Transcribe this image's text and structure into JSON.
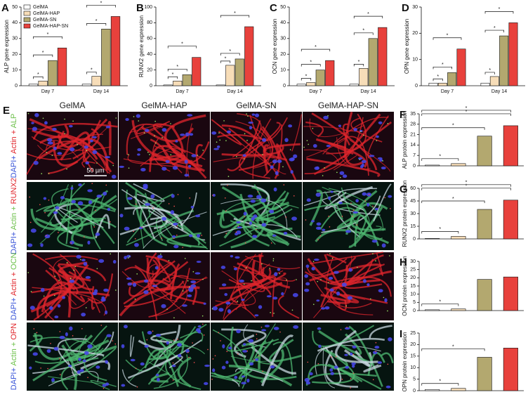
{
  "chart_data": [
    {
      "type": "grouped_bar",
      "panel": "A",
      "ylabel": "ALP gene expression",
      "categories": [
        "Day 7",
        "Day 14"
      ],
      "series": [
        {
          "name": "GelMA",
          "color": "#ffffff",
          "values": [
            1,
            1
          ]
        },
        {
          "name": "GelMA-HAP",
          "color": "#f7ddb8",
          "values": [
            3,
            6
          ]
        },
        {
          "name": "GelMA-SN",
          "color": "#b3a86f",
          "values": [
            16,
            36
          ]
        },
        {
          "name": "GelMA-HAP-SN",
          "color": "#e8413c",
          "values": [
            24,
            44
          ]
        }
      ],
      "ylim": [
        0,
        50
      ],
      "yticks": [
        0,
        10,
        20,
        30,
        40,
        50
      ],
      "legend": "upper left",
      "annotations": [
        "*",
        "*",
        "*",
        "*",
        "*",
        "*"
      ]
    },
    {
      "type": "grouped_bar",
      "panel": "B",
      "ylabel": "RUNX2 gene expression",
      "categories": [
        "Day 7",
        "Day 14"
      ],
      "series": [
        {
          "name": "GelMA",
          "color": "#ffffff",
          "values": [
            1,
            1
          ]
        },
        {
          "name": "GelMA-HAP",
          "color": "#f7ddb8",
          "values": [
            6,
            26
          ]
        },
        {
          "name": "GelMA-SN",
          "color": "#b3a86f",
          "values": [
            14,
            34
          ]
        },
        {
          "name": "GelMA-HAP-SN",
          "color": "#e8413c",
          "values": [
            36,
            75
          ]
        }
      ],
      "ylim": [
        0,
        100
      ],
      "yticks": [
        0,
        20,
        40,
        60,
        80,
        100
      ],
      "annotations": [
        "*",
        "*",
        "*",
        "*",
        "*",
        "*"
      ]
    },
    {
      "type": "grouped_bar",
      "panel": "C",
      "ylabel": "OCN gene expression",
      "categories": [
        "Day 7",
        "Day 14"
      ],
      "series": [
        {
          "name": "GelMA",
          "color": "#ffffff",
          "values": [
            1,
            1
          ]
        },
        {
          "name": "GelMA-HAP",
          "color": "#f7ddb8",
          "values": [
            2,
            11
          ]
        },
        {
          "name": "GelMA-SN",
          "color": "#b3a86f",
          "values": [
            10,
            30
          ]
        },
        {
          "name": "GelMA-HAP-SN",
          "color": "#e8413c",
          "values": [
            16,
            37
          ]
        }
      ],
      "ylim": [
        0,
        50
      ],
      "yticks": [
        0,
        10,
        20,
        30,
        40,
        50
      ],
      "annotations": [
        "*",
        "*",
        "*",
        "*",
        "*",
        "*"
      ]
    },
    {
      "type": "grouped_bar",
      "panel": "D",
      "ylabel": "OPN gene expression",
      "categories": [
        "Day 7",
        "Day 14"
      ],
      "series": [
        {
          "name": "GelMA",
          "color": "#ffffff",
          "values": [
            1,
            1
          ]
        },
        {
          "name": "GelMA-HAP",
          "color": "#f7ddb8",
          "values": [
            1,
            3.5
          ]
        },
        {
          "name": "GelMA-SN",
          "color": "#b3a86f",
          "values": [
            5,
            19
          ]
        },
        {
          "name": "GelMA-HAP-SN",
          "color": "#e8413c",
          "values": [
            14,
            24
          ]
        }
      ],
      "ylim": [
        0,
        30
      ],
      "yticks": [
        0,
        10,
        20,
        30
      ],
      "annotations": [
        "*",
        "*",
        "*",
        "*",
        "*",
        "*"
      ]
    },
    {
      "type": "bar",
      "panel": "F",
      "ylabel": "ALP protein expression",
      "categories": [
        null,
        null,
        null,
        null
      ],
      "values": [
        0.5,
        1.5,
        20,
        27
      ],
      "colors": [
        "#ffffff",
        "#f7ddb8",
        "#b3a86f",
        "#e8413c"
      ],
      "ylim": [
        0,
        35
      ],
      "yticks": [
        0,
        7,
        14,
        21,
        28,
        35
      ],
      "annotations": [
        "*",
        "*",
        "*",
        "*"
      ]
    },
    {
      "type": "bar",
      "panel": "G",
      "ylabel": "RUNX2 protein expression",
      "categories": [
        null,
        null,
        null,
        null
      ],
      "values": [
        0.5,
        3,
        35,
        46
      ],
      "colors": [
        "#ffffff",
        "#f7ddb8",
        "#b3a86f",
        "#e8413c"
      ],
      "ylim": [
        0,
        60
      ],
      "yticks": [
        0,
        15,
        30,
        45,
        60
      ],
      "annotations": [
        "*",
        "*",
        "*",
        "*"
      ]
    },
    {
      "type": "bar",
      "panel": "H",
      "ylabel": "OCN protein expression",
      "categories": [
        null,
        null,
        null,
        null
      ],
      "values": [
        0.5,
        1,
        19,
        20.5
      ],
      "colors": [
        "#ffffff",
        "#f7ddb8",
        "#b3a86f",
        "#e8413c"
      ],
      "ylim": [
        0,
        30
      ],
      "yticks": [
        0,
        5,
        10,
        15,
        20,
        25,
        30
      ],
      "annotations": [
        "*"
      ]
    },
    {
      "type": "bar",
      "panel": "I",
      "ylabel": "OPN protein expression",
      "categories": [
        null,
        null,
        null,
        null
      ],
      "values": [
        0.5,
        1,
        14.5,
        18.5
      ],
      "colors": [
        "#ffffff",
        "#f7ddb8",
        "#b3a86f",
        "#e8413c"
      ],
      "ylim": [
        0,
        25
      ],
      "yticks": [
        0,
        5,
        10,
        15,
        20,
        25
      ],
      "annotations": [
        "*",
        "*"
      ]
    }
  ],
  "image_panel": {
    "panel": "E",
    "columns": [
      "GelMA",
      "GelMA-HAP",
      "GelMA-SN",
      "GelMA-HAP-SN"
    ],
    "rows": [
      [
        {
          "text": "DAPI+",
          "color": "#3a55d8"
        },
        {
          "text": " Actin +",
          "color": "#e0262c"
        },
        {
          "text": " ALP",
          "color": "#6cc04a"
        }
      ],
      [
        {
          "text": "DAPI+",
          "color": "#3a55d8"
        },
        {
          "text": " Actin +",
          "color": "#6cc04a"
        },
        {
          "text": " RUNX2",
          "color": "#e0262c"
        }
      ],
      [
        {
          "text": "DAPI+",
          "color": "#3a55d8"
        },
        {
          "text": " Actin +",
          "color": "#e0262c"
        },
        {
          "text": " OCN",
          "color": "#6cc04a"
        }
      ],
      [
        {
          "text": "DAPI+",
          "color": "#3a55d8"
        },
        {
          "text": " Actin +",
          "color": "#6cc04a"
        },
        {
          "text": " OPN",
          "color": "#e0262c"
        }
      ]
    ],
    "scale_bar": "50 µm"
  }
}
